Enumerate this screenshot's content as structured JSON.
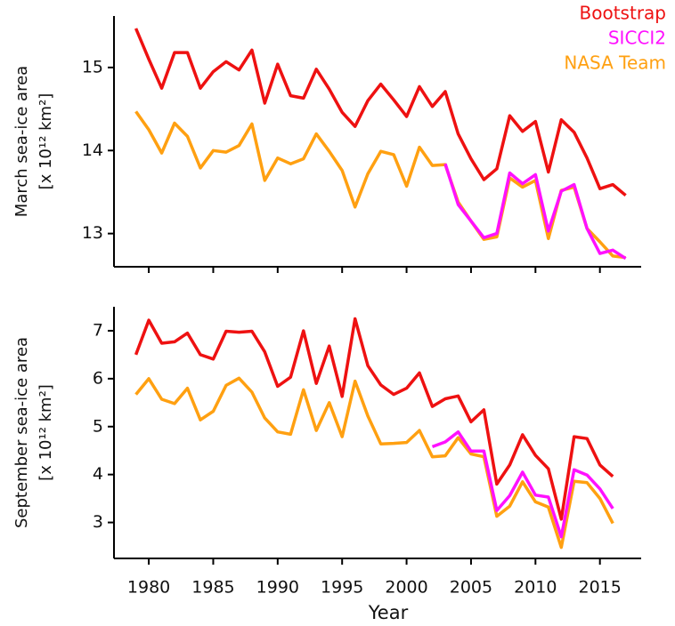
{
  "chart_data": [
    {
      "type": "line",
      "ylabel": [
        "March sea-ice area",
        "[x 10¹² km²]"
      ],
      "x": [
        1979,
        1980,
        1981,
        1982,
        1983,
        1984,
        1985,
        1986,
        1987,
        1988,
        1989,
        1990,
        1991,
        1992,
        1993,
        1994,
        1995,
        1996,
        1997,
        1998,
        1999,
        2000,
        2001,
        2002,
        2003,
        2004,
        2005,
        2006,
        2007,
        2008,
        2009,
        2010,
        2011,
        2012,
        2013,
        2014,
        2015,
        2016,
        2017
      ],
      "series": [
        {
          "name": "Bootstrap",
          "color": "#ee1111",
          "values": [
            15.47,
            15.1,
            14.75,
            15.18,
            15.18,
            14.75,
            14.95,
            15.07,
            14.97,
            15.21,
            14.57,
            15.04,
            14.66,
            14.63,
            14.98,
            14.74,
            14.46,
            14.29,
            14.6,
            14.8,
            14.61,
            14.41,
            14.77,
            14.53,
            14.71,
            14.2,
            13.9,
            13.65,
            13.78,
            14.42,
            14.23,
            14.35,
            13.74,
            14.37,
            14.22,
            13.91,
            13.54,
            13.59,
            13.46
          ]
        },
        {
          "name": "SICCI2",
          "color": "#ff11ff",
          "values": [
            null,
            null,
            null,
            null,
            null,
            null,
            null,
            null,
            null,
            null,
            null,
            null,
            null,
            null,
            null,
            null,
            null,
            null,
            null,
            null,
            null,
            null,
            null,
            null,
            13.84,
            13.35,
            13.15,
            12.95,
            13.0,
            13.73,
            13.6,
            13.71,
            13.03,
            13.51,
            13.59,
            13.06,
            12.76,
            12.8,
            12.7
          ]
        },
        {
          "name": "NASA Team",
          "color": "#ffa011",
          "values": [
            14.47,
            14.25,
            13.97,
            14.33,
            14.17,
            13.79,
            14.0,
            13.98,
            14.06,
            14.32,
            13.64,
            13.91,
            13.84,
            13.9,
            14.2,
            13.99,
            13.76,
            13.32,
            13.72,
            13.99,
            13.95,
            13.57,
            14.04,
            13.82,
            13.83,
            13.38,
            13.15,
            12.93,
            12.96,
            13.67,
            13.56,
            13.64,
            12.94,
            13.52,
            13.56,
            13.06,
            12.9,
            12.73,
            12.71
          ]
        }
      ],
      "xlim": [
        1977.3,
        2018.2
      ],
      "xticks": [
        1980,
        1985,
        1990,
        1995,
        2000,
        2005,
        2010,
        2015
      ],
      "xticklabels": false,
      "ylim": [
        12.6,
        15.62
      ],
      "yticks": [
        13,
        14,
        15
      ],
      "legend": "upper right"
    },
    {
      "type": "line",
      "ylabel": [
        "September sea-ice area",
        "[x 10¹² km²]"
      ],
      "xlabel": "Year",
      "x": [
        1979,
        1980,
        1981,
        1982,
        1983,
        1984,
        1985,
        1986,
        1987,
        1988,
        1989,
        1990,
        1991,
        1992,
        1993,
        1994,
        1995,
        1996,
        1997,
        1998,
        1999,
        2000,
        2001,
        2002,
        2003,
        2004,
        2005,
        2006,
        2007,
        2008,
        2009,
        2010,
        2011,
        2012,
        2013,
        2014,
        2015,
        2016
      ],
      "series": [
        {
          "name": "Bootstrap",
          "color": "#ee1111",
          "values": [
            6.5,
            7.22,
            6.74,
            6.77,
            6.95,
            6.5,
            6.41,
            6.99,
            6.97,
            6.99,
            6.56,
            5.84,
            6.03,
            7.0,
            5.9,
            6.68,
            5.63,
            7.25,
            6.27,
            5.87,
            5.67,
            5.8,
            6.12,
            5.42,
            5.58,
            5.64,
            5.1,
            5.35,
            3.8,
            4.2,
            4.83,
            4.4,
            4.12,
            3.07,
            4.79,
            4.75,
            4.2,
            3.96
          ]
        },
        {
          "name": "SICCI2",
          "color": "#ff11ff",
          "values": [
            null,
            null,
            null,
            null,
            null,
            null,
            null,
            null,
            null,
            null,
            null,
            null,
            null,
            null,
            null,
            null,
            null,
            null,
            null,
            null,
            null,
            null,
            null,
            4.58,
            4.68,
            4.89,
            4.49,
            4.49,
            3.25,
            3.56,
            4.05,
            3.57,
            3.53,
            2.7,
            4.1,
            3.99,
            3.7,
            3.29
          ]
        },
        {
          "name": "NASA Team",
          "color": "#ffa011",
          "values": [
            5.67,
            6.0,
            5.57,
            5.48,
            5.8,
            5.14,
            5.32,
            5.86,
            6.01,
            5.72,
            5.18,
            4.89,
            4.84,
            5.77,
            4.92,
            5.5,
            4.79,
            5.95,
            5.22,
            4.64,
            4.65,
            4.67,
            4.92,
            4.37,
            4.39,
            4.77,
            4.43,
            4.37,
            3.13,
            3.34,
            3.85,
            3.43,
            3.32,
            2.48,
            3.86,
            3.83,
            3.5,
            2.98
          ]
        }
      ],
      "xlim": [
        1977.3,
        2018.2
      ],
      "xticks": [
        1980,
        1985,
        1990,
        1995,
        2000,
        2005,
        2010,
        2015
      ],
      "ylim": [
        2.25,
        7.5
      ],
      "yticks": [
        3,
        4,
        5,
        6,
        7
      ]
    }
  ]
}
